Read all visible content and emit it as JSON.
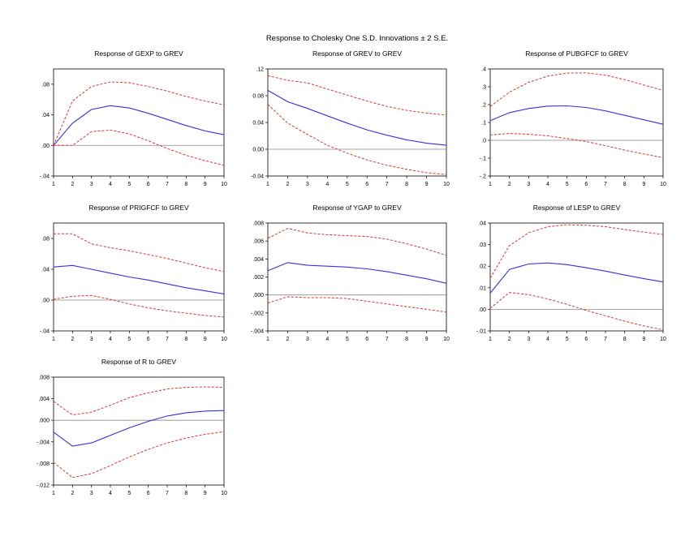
{
  "figure_title": "Response to Cholesky One S.D. Innovations ± 2 S.E.",
  "colors": {
    "response": "#3333dd",
    "band": "#e8302a",
    "zero": "#888888",
    "frame": "#000000"
  },
  "chart_data": [
    {
      "type": "line",
      "title": "Response of GEXP to GREV",
      "x": [
        1,
        2,
        3,
        4,
        5,
        6,
        7,
        8,
        9,
        10
      ],
      "ylim": [
        -0.04,
        0.1
      ],
      "yticks": [
        -0.04,
        0.0,
        0.04,
        0.08
      ],
      "ytick_labels": [
        "-.04",
        ".00",
        ".04",
        ".08"
      ],
      "series": [
        {
          "name": "response",
          "values": [
            0.0,
            0.029,
            0.047,
            0.052,
            0.049,
            0.042,
            0.034,
            0.026,
            0.019,
            0.014
          ]
        },
        {
          "name": "upper",
          "values": [
            0.0,
            0.058,
            0.077,
            0.083,
            0.082,
            0.077,
            0.071,
            0.064,
            0.058,
            0.053
          ]
        },
        {
          "name": "lower",
          "values": [
            0.0,
            0.0,
            0.018,
            0.02,
            0.015,
            0.006,
            -0.004,
            -0.013,
            -0.02,
            -0.026
          ]
        }
      ]
    },
    {
      "type": "line",
      "title": "Response of GREV to GREV",
      "x": [
        1,
        2,
        3,
        4,
        5,
        6,
        7,
        8,
        9,
        10
      ],
      "ylim": [
        -0.04,
        0.12
      ],
      "yticks": [
        -0.04,
        0.0,
        0.04,
        0.08,
        0.12
      ],
      "ytick_labels": [
        "-0.04",
        "0.00",
        "0.04",
        "0.08",
        ".12"
      ],
      "series": [
        {
          "name": "response",
          "values": [
            0.088,
            0.071,
            0.061,
            0.05,
            0.039,
            0.029,
            0.021,
            0.014,
            0.009,
            0.006
          ]
        },
        {
          "name": "upper",
          "values": [
            0.11,
            0.103,
            0.099,
            0.09,
            0.081,
            0.072,
            0.064,
            0.058,
            0.054,
            0.051
          ]
        },
        {
          "name": "lower",
          "values": [
            0.067,
            0.039,
            0.022,
            0.006,
            -0.006,
            -0.016,
            -0.024,
            -0.03,
            -0.035,
            -0.038
          ]
        }
      ]
    },
    {
      "type": "line",
      "title": "Response of PUBGFCF to GREV",
      "x": [
        1,
        2,
        3,
        4,
        5,
        6,
        7,
        8,
        9,
        10
      ],
      "ylim": [
        -0.2,
        0.4
      ],
      "yticks": [
        -0.2,
        -0.1,
        0.0,
        0.1,
        0.2,
        0.3,
        0.4
      ],
      "ytick_labels": [
        "-.2",
        "-.1",
        ".0",
        ".1",
        ".2",
        ".3",
        ".4"
      ],
      "series": [
        {
          "name": "response",
          "values": [
            0.11,
            0.155,
            0.178,
            0.192,
            0.193,
            0.184,
            0.165,
            0.14,
            0.115,
            0.09
          ]
        },
        {
          "name": "upper",
          "values": [
            0.19,
            0.27,
            0.325,
            0.36,
            0.377,
            0.378,
            0.365,
            0.34,
            0.31,
            0.28
          ]
        },
        {
          "name": "lower",
          "values": [
            0.03,
            0.038,
            0.034,
            0.025,
            0.01,
            -0.007,
            -0.03,
            -0.055,
            -0.077,
            -0.097
          ]
        }
      ]
    },
    {
      "type": "line",
      "title": "Response of PRIGFCF to GREV",
      "x": [
        1,
        2,
        3,
        4,
        5,
        6,
        7,
        8,
        9,
        10
      ],
      "ylim": [
        -0.04,
        0.1
      ],
      "yticks": [
        -0.04,
        0.0,
        0.04,
        0.08
      ],
      "ytick_labels": [
        "-.04",
        ".00",
        ".04",
        ".08"
      ],
      "series": [
        {
          "name": "response",
          "values": [
            0.043,
            0.045,
            0.04,
            0.035,
            0.03,
            0.026,
            0.021,
            0.016,
            0.012,
            0.008
          ]
        },
        {
          "name": "upper",
          "values": [
            0.086,
            0.086,
            0.073,
            0.068,
            0.064,
            0.059,
            0.054,
            0.048,
            0.042,
            0.037
          ]
        },
        {
          "name": "lower",
          "values": [
            0.001,
            0.005,
            0.006,
            0.001,
            -0.005,
            -0.01,
            -0.014,
            -0.017,
            -0.02,
            -0.022
          ]
        }
      ]
    },
    {
      "type": "line",
      "title": "Response of YGAP to GREV",
      "x": [
        1,
        2,
        3,
        4,
        5,
        6,
        7,
        8,
        9,
        10
      ],
      "ylim": [
        -0.004,
        0.008
      ],
      "yticks": [
        -0.004,
        -0.002,
        0.0,
        0.002,
        0.004,
        0.006,
        0.008
      ],
      "ytick_labels": [
        "-.004",
        "-.002",
        ".000",
        ".002",
        ".004",
        ".006",
        ".008"
      ],
      "series": [
        {
          "name": "response",
          "values": [
            0.0027,
            0.0036,
            0.0033,
            0.0032,
            0.0031,
            0.0029,
            0.0026,
            0.0022,
            0.0018,
            0.0013
          ]
        },
        {
          "name": "upper",
          "values": [
            0.0063,
            0.0074,
            0.0069,
            0.0067,
            0.0066,
            0.0065,
            0.0062,
            0.0057,
            0.0051,
            0.0044
          ]
        },
        {
          "name": "lower",
          "values": [
            -0.0009,
            -0.0002,
            -0.0003,
            -0.0003,
            -0.0004,
            -0.0007,
            -0.001,
            -0.0013,
            -0.0016,
            -0.0019
          ]
        }
      ]
    },
    {
      "type": "line",
      "title": "Response of LESP to GREV",
      "x": [
        1,
        2,
        3,
        4,
        5,
        6,
        7,
        8,
        9,
        10
      ],
      "ylim": [
        -0.01,
        0.04
      ],
      "yticks": [
        -0.01,
        0.0,
        0.01,
        0.02,
        0.03,
        0.04
      ],
      "ytick_labels": [
        "-.01",
        ".00",
        ".01",
        ".02",
        ".03",
        ".04"
      ],
      "series": [
        {
          "name": "response",
          "values": [
            0.0075,
            0.0185,
            0.021,
            0.0215,
            0.0207,
            0.0193,
            0.0177,
            0.0159,
            0.0142,
            0.0127
          ]
        },
        {
          "name": "upper",
          "values": [
            0.0145,
            0.0295,
            0.0355,
            0.0383,
            0.0392,
            0.039,
            0.0383,
            0.037,
            0.0358,
            0.0347
          ]
        },
        {
          "name": "lower",
          "values": [
            0.0005,
            0.0078,
            0.0068,
            0.0048,
            0.0023,
            -0.0005,
            -0.003,
            -0.0055,
            -0.0077,
            -0.0095
          ]
        }
      ]
    },
    {
      "type": "line",
      "title": "Response of R to GREV",
      "x": [
        1,
        2,
        3,
        4,
        5,
        6,
        7,
        8,
        9,
        10
      ],
      "ylim": [
        -0.012,
        0.008
      ],
      "yticks": [
        -0.012,
        -0.008,
        -0.004,
        0.0,
        0.004,
        0.008
      ],
      "ytick_labels": [
        "-.012",
        "-.008",
        "-.004",
        ".000",
        ".004",
        ".008"
      ],
      "series": [
        {
          "name": "response",
          "values": [
            -0.0022,
            -0.0048,
            -0.0042,
            -0.0028,
            -0.0014,
            -0.0002,
            0.0008,
            0.0014,
            0.0017,
            0.0018
          ]
        },
        {
          "name": "upper",
          "values": [
            0.0035,
            0.001,
            0.0015,
            0.0028,
            0.0042,
            0.0051,
            0.0058,
            0.0061,
            0.0062,
            0.0061
          ]
        },
        {
          "name": "lower",
          "values": [
            -0.0078,
            -0.0106,
            -0.0099,
            -0.0084,
            -0.0068,
            -0.0054,
            -0.0042,
            -0.0033,
            -0.0026,
            -0.0021
          ]
        }
      ]
    }
  ]
}
